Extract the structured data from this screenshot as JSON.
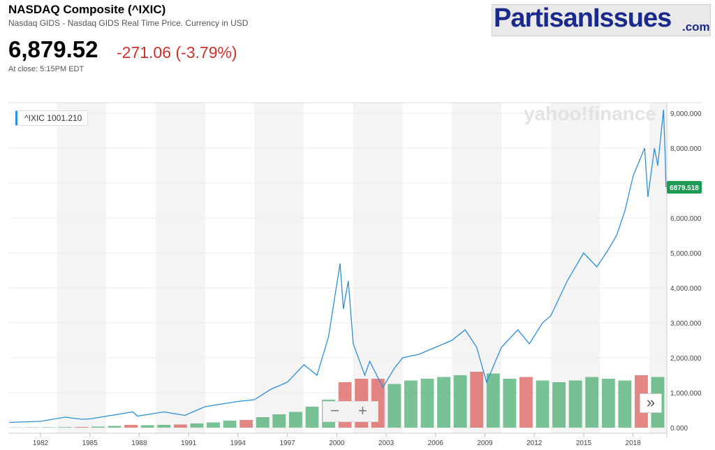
{
  "header": {
    "title": "NASDAQ Composite (^IXIC)",
    "subtitle": "Nasdaq GIDS - Nasdaq GIDS Real Time Price. Currency in USD",
    "price": "6,879.52",
    "change": "-271.06 (-3.79%)",
    "close_note": "At close: 5:15PM EDT"
  },
  "logo": {
    "name": "PartisanIssues",
    "suffix": ".com"
  },
  "controls": {
    "zoom_out": "−",
    "zoom_in": "+",
    "more": "»"
  },
  "chart_data": {
    "type": "line",
    "watermark": "yahoo!finance",
    "legend_label": "^IXIC 1001.210",
    "last_price_label": {
      "value": 6879.518,
      "label": "6879.518"
    },
    "x": [
      1980.1,
      1982,
      1983.5,
      1984.5,
      1985,
      1987.6,
      1987.9,
      1989.5,
      1990.8,
      1991,
      1992,
      1994,
      1995,
      1996,
      1997,
      1998,
      1998.8,
      1999.5,
      2000.2,
      2000.4,
      2000.7,
      2001.0,
      2001.7,
      2002.0,
      2002.8,
      2003.5,
      2004,
      2005,
      2006,
      2007,
      2007.8,
      2008.5,
      2009.1,
      2010,
      2011,
      2011.7,
      2012.5,
      2013,
      2014,
      2015,
      2015.8,
      2016.5,
      2017,
      2017.5,
      2018,
      2018.7,
      2018.9,
      2019.3,
      2019.5,
      2019.85,
      2019.95,
      2020.0
    ],
    "series": [
      {
        "name": "^IXIC",
        "color": "#2d8fd5",
        "values": [
          150,
          180,
          300,
          240,
          250,
          450,
          330,
          450,
          350,
          400,
          600,
          750,
          800,
          1100,
          1300,
          1800,
          1500,
          2600,
          4700,
          3400,
          4200,
          2400,
          1500,
          1900,
          1150,
          1700,
          2000,
          2100,
          2300,
          2500,
          2800,
          2300,
          1300,
          2300,
          2800,
          2400,
          3000,
          3200,
          4200,
          5000,
          4600,
          5100,
          5500,
          6200,
          7200,
          8000,
          6600,
          8000,
          7500,
          9100,
          7800,
          6880
        ]
      },
      {
        "name": "Volume",
        "type": "bar",
        "x": [
          1980,
          1981,
          1982,
          1983,
          1984,
          1985,
          1986,
          1987,
          1988,
          1989,
          1990,
          1991,
          1992,
          1993,
          1994,
          1995,
          1996,
          1997,
          1998,
          1999,
          2000,
          2001,
          2002,
          2003,
          2004,
          2005,
          2006,
          2007,
          2008,
          2009,
          2010,
          2011,
          2012,
          2013,
          2014,
          2015,
          2016,
          2017,
          2018,
          2019
        ],
        "colors": [
          "#3fa86a",
          "#3fa86a",
          "#3fa86a",
          "#3fa86a",
          "#d9534f",
          "#3fa86a",
          "#3fa86a",
          "#d9534f",
          "#3fa86a",
          "#3fa86a",
          "#d9534f",
          "#3fa86a",
          "#3fa86a",
          "#3fa86a",
          "#d9534f",
          "#3fa86a",
          "#3fa86a",
          "#3fa86a",
          "#3fa86a",
          "#3fa86a",
          "#d9534f",
          "#d9534f",
          "#d9534f",
          "#3fa86a",
          "#3fa86a",
          "#3fa86a",
          "#3fa86a",
          "#3fa86a",
          "#d9534f",
          "#3fa86a",
          "#3fa86a",
          "#d9534f",
          "#3fa86a",
          "#3fa86a",
          "#3fa86a",
          "#3fa86a",
          "#3fa86a",
          "#3fa86a",
          "#d9534f",
          "#3fa86a"
        ],
        "values": [
          5,
          8,
          10,
          15,
          20,
          30,
          50,
          80,
          70,
          80,
          90,
          120,
          150,
          200,
          220,
          300,
          380,
          450,
          600,
          800,
          1300,
          1400,
          1400,
          1250,
          1350,
          1400,
          1450,
          1500,
          1600,
          1550,
          1400,
          1450,
          1350,
          1300,
          1350,
          1450,
          1400,
          1350,
          1500,
          1450
        ]
      }
    ],
    "xlim": [
      1980.05,
      2020.05
    ],
    "xticks": [
      1982,
      1985,
      1988,
      1991,
      1994,
      1997,
      2000,
      2003,
      2006,
      2009,
      2012,
      2015,
      2018
    ],
    "ylim": [
      -160,
      9300
    ],
    "yticks": [
      {
        "value": 0,
        "label": "0.000"
      },
      {
        "value": 1000,
        "label": "1,000.000"
      },
      {
        "value": 2000,
        "label": "2,000.000"
      },
      {
        "value": 3000,
        "label": "3,000.000"
      },
      {
        "value": 4000,
        "label": "4,000.000"
      },
      {
        "value": 5000,
        "label": "5,000.000"
      },
      {
        "value": 6000,
        "label": "6,000.000"
      },
      {
        "value": 7000,
        "label": "7,000.000"
      },
      {
        "value": 8000,
        "label": "8,000.000"
      },
      {
        "value": 9000,
        "label": "9,000.000"
      }
    ],
    "grid": true
  }
}
